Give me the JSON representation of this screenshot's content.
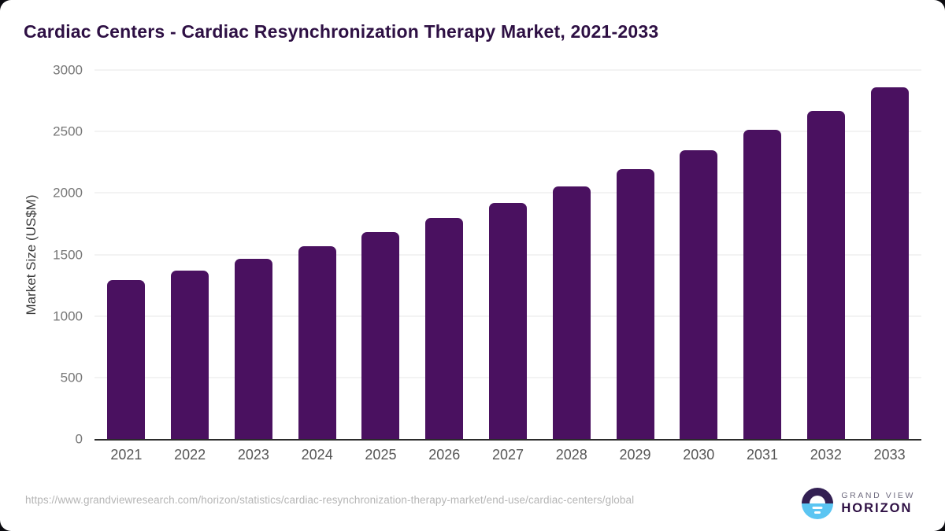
{
  "chart_data": {
    "type": "bar",
    "title": "Cardiac Centers - Cardiac Resynchronization Therapy Market, 2021-2033",
    "categories": [
      "2021",
      "2022",
      "2023",
      "2024",
      "2025",
      "2026",
      "2027",
      "2028",
      "2029",
      "2030",
      "2031",
      "2032",
      "2033"
    ],
    "values": [
      1295,
      1370,
      1465,
      1565,
      1680,
      1795,
      1920,
      2055,
      2195,
      2350,
      2515,
      2670,
      2860
    ],
    "xlabel": "",
    "ylabel": "Market Size (US$M)",
    "ylim": [
      0,
      3000
    ],
    "yticks": [
      0,
      500,
      1000,
      1500,
      2000,
      2500,
      3000
    ],
    "grid": "horizontal",
    "legend": "none",
    "bar_color": "#4a1160"
  },
  "footer": {
    "source_url": "https://www.grandviewresearch.com/horizon/statistics/cardiac-resynchronization-therapy-market/end-use/cardiac-centers/global",
    "brand_top": "GRAND VIEW",
    "brand_bottom": "HORIZON"
  },
  "colors": {
    "bar": "#4a1160",
    "title": "#2e1044",
    "grid": "#e7e7e7",
    "axis_line": "#2b2b2b",
    "tick": "#777777",
    "xlabel_color": "#565656",
    "url_color": "#b5b5b5",
    "brand_gray": "#6e6a7e",
    "logo_blue": "#5bc5f2",
    "logo_purple": "#332053"
  }
}
